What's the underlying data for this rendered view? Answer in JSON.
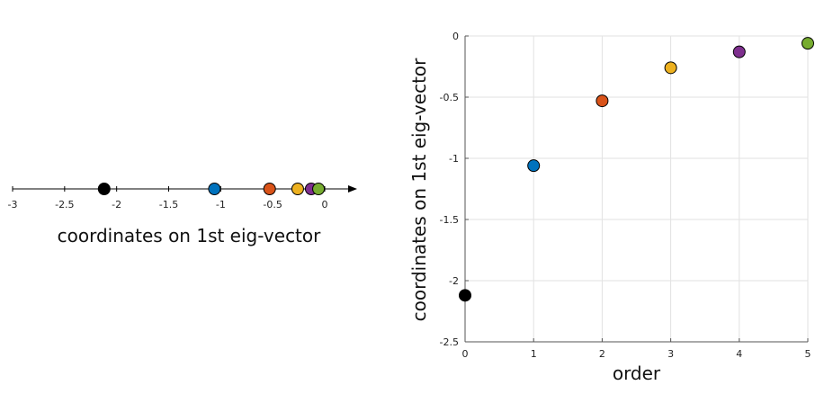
{
  "chart_data": [
    {
      "type": "scatter",
      "title": "",
      "xlabel": "coordinates on 1st eig-vector",
      "ylabel": "",
      "xlim": [
        -3,
        0.3
      ],
      "xticks": [
        -3,
        -2.5,
        -2,
        -1.5,
        -1,
        -0.5,
        0
      ],
      "xtick_labels": [
        "-3",
        "-2.5",
        "-2",
        "-1.5",
        "-1",
        "-0.5",
        "0"
      ],
      "grid": false,
      "points": [
        {
          "x": -2.12,
          "color": "#000000"
        },
        {
          "x": -1.06,
          "color": "#0072BD"
        },
        {
          "x": -0.53,
          "color": "#D95319"
        },
        {
          "x": -0.26,
          "color": "#EDB120"
        },
        {
          "x": -0.13,
          "color": "#7E2F8E"
        },
        {
          "x": -0.06,
          "color": "#77AC30"
        }
      ]
    },
    {
      "type": "scatter",
      "title": "",
      "xlabel": "order",
      "ylabel": "coordinates on 1st eig-vector",
      "xlim": [
        0,
        5
      ],
      "ylim": [
        -2.5,
        0
      ],
      "xticks": [
        0,
        1,
        2,
        3,
        4,
        5
      ],
      "xtick_labels": [
        "0",
        "1",
        "2",
        "3",
        "4",
        "5"
      ],
      "yticks": [
        0,
        -0.5,
        -1,
        -1.5,
        -2,
        -2.5
      ],
      "ytick_labels": [
        "0",
        "-0.5",
        "-1",
        "-1.5",
        "-2",
        "-2.5"
      ],
      "grid": true,
      "points": [
        {
          "x": 0,
          "y": -2.12,
          "color": "#000000"
        },
        {
          "x": 1,
          "y": -1.06,
          "color": "#0072BD"
        },
        {
          "x": 2,
          "y": -0.53,
          "color": "#D95319"
        },
        {
          "x": 3,
          "y": -0.26,
          "color": "#EDB120"
        },
        {
          "x": 4,
          "y": -0.13,
          "color": "#7E2F8E"
        },
        {
          "x": 5,
          "y": -0.06,
          "color": "#77AC30"
        }
      ]
    }
  ]
}
